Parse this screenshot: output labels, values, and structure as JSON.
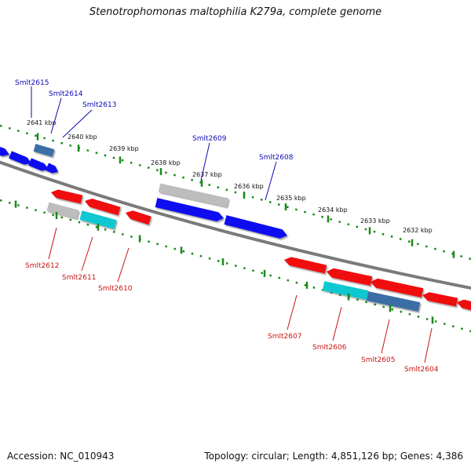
{
  "title": "Stenotrophomonas maltophilia K279a, complete genome",
  "footer": {
    "accession": "Accession: NC_010943",
    "summary": "Topology: circular; Length: 4,851,126 bp; Genes: 4,386"
  },
  "colors": {
    "forward_track": "#1a8a1a",
    "reverse_track": "#1a8a1a",
    "backbone": "#7a7a7a",
    "forward_gene": "#1010f0",
    "reverse_gene": "#f01010",
    "pseudo_gene": "#bdbdbd",
    "cyan_gene": "#10c8d0",
    "steel_gene": "#3a6ea5",
    "forward_label": "#0a0ab4",
    "reverse_label": "#c81414"
  },
  "scale_ticks": [
    "2641 kbp",
    "2640 kbp",
    "2639 kbp",
    "2638 kbp",
    "2637 kbp",
    "2636 kbp",
    "2635 kbp",
    "2634 kbp",
    "2633 kbp",
    "2632 kbp"
  ],
  "forward_labels": [
    "Smlt2615",
    "Smlt2614",
    "Smlt2613",
    "Smlt2609",
    "Smlt2608"
  ],
  "reverse_labels": [
    "Smlt2612",
    "Smlt2611",
    "Smlt2610",
    "Smlt2607",
    "Smlt2606",
    "Smlt2605",
    "Smlt2604"
  ]
}
